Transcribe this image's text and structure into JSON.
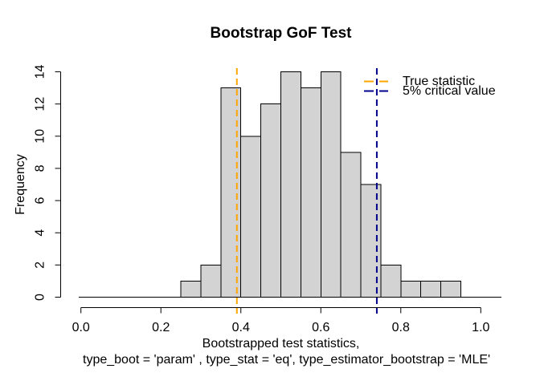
{
  "figure": {
    "background": "#ffffff"
  },
  "chart_data": {
    "type": "histogram",
    "title": "Bootstrap GoF Test",
    "ylabel": "Frequency",
    "xlabel_line1": "Bootstrapped test statistics,",
    "xlabel_line2": "type_boot = 'param' , type_stat = 'eq', type_estimator_bootstrap = 'MLE'",
    "bins": {
      "start": 0.25,
      "width": 0.05
    },
    "frequencies": [
      1,
      2,
      13,
      10,
      12,
      14,
      13,
      14,
      9,
      7,
      2,
      1,
      1,
      1
    ],
    "x_ticks": {
      "values": [
        0,
        0.2,
        0.4,
        0.6,
        0.8,
        1.0
      ],
      "labels": [
        "0.0",
        "0.2",
        "0.4",
        "0.6",
        "0.8",
        "1.0"
      ]
    },
    "y_ticks": {
      "values": [
        0,
        2,
        4,
        6,
        8,
        10,
        12,
        14
      ],
      "labels": [
        "0",
        "2",
        "4",
        "6",
        "8",
        "10",
        "12",
        "14"
      ]
    },
    "xlim": [
      0,
      1.05
    ],
    "ylim": [
      0,
      14
    ],
    "grid": false,
    "bar_fill": "#d3d3d3",
    "bar_stroke": "#000000",
    "vlines": [
      {
        "label": "True statistic",
        "value": 0.39,
        "color": "#ffa500",
        "style": "dashed"
      },
      {
        "label": "5% critical value",
        "value": 0.74,
        "color": "#00008b",
        "style": "dashed"
      }
    ],
    "legend": {
      "position": "top-right",
      "border": "none"
    }
  }
}
